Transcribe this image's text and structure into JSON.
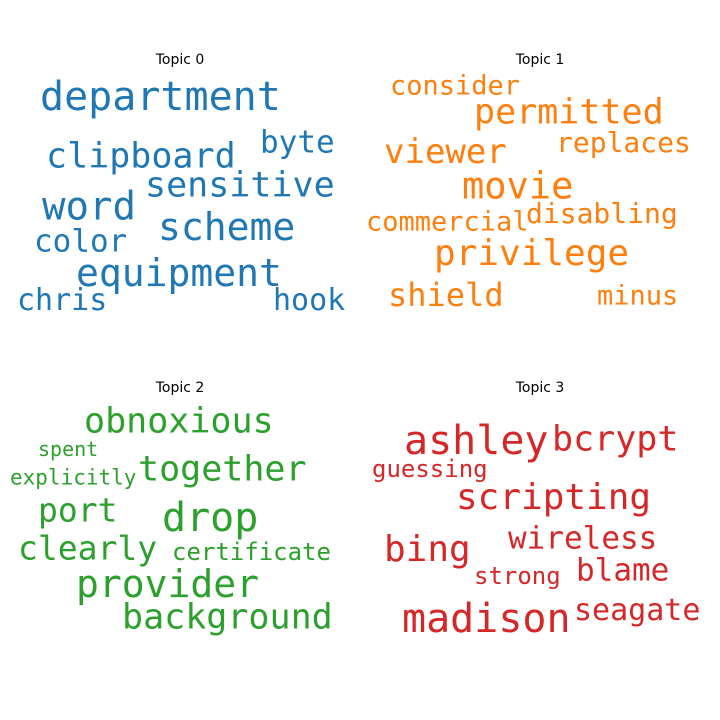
{
  "chart_data": {
    "type": "wordcloud",
    "panels": [
      {
        "title": "Topic 0",
        "color": "#1f77b4",
        "words": [
          {
            "text": "department",
            "size": 40
          },
          {
            "text": "clipboard",
            "size": 35
          },
          {
            "text": "byte",
            "size": 31
          },
          {
            "text": "sensitive",
            "size": 35
          },
          {
            "text": "word",
            "size": 39
          },
          {
            "text": "scheme",
            "size": 38
          },
          {
            "text": "color",
            "size": 31
          },
          {
            "text": "equipment",
            "size": 38
          },
          {
            "text": "chris",
            "size": 30
          },
          {
            "text": "hook",
            "size": 30
          }
        ]
      },
      {
        "title": "Topic 1",
        "color": "#ff7f0e",
        "words": [
          {
            "text": "consider",
            "size": 27
          },
          {
            "text": "permitted",
            "size": 35
          },
          {
            "text": "viewer",
            "size": 34
          },
          {
            "text": "replaces",
            "size": 28
          },
          {
            "text": "movie",
            "size": 37
          },
          {
            "text": "commercial",
            "size": 27
          },
          {
            "text": "disabling",
            "size": 28
          },
          {
            "text": "privilege",
            "size": 36
          },
          {
            "text": "shield",
            "size": 32
          },
          {
            "text": "minus",
            "size": 27
          }
        ]
      },
      {
        "title": "Topic 2",
        "color": "#2ca02c",
        "words": [
          {
            "text": "obnoxious",
            "size": 35
          },
          {
            "text": "spent",
            "size": 20
          },
          {
            "text": "explicitly",
            "size": 21
          },
          {
            "text": "together",
            "size": 35
          },
          {
            "text": "port",
            "size": 33
          },
          {
            "text": "drop",
            "size": 40
          },
          {
            "text": "clearly",
            "size": 33
          },
          {
            "text": "certificate",
            "size": 24
          },
          {
            "text": "provider",
            "size": 38
          },
          {
            "text": "background",
            "size": 35
          }
        ]
      },
      {
        "title": "Topic 3",
        "color": "#d62728",
        "words": [
          {
            "text": "ashley",
            "size": 40
          },
          {
            "text": "bcrypt",
            "size": 35
          },
          {
            "text": "guessing",
            "size": 24
          },
          {
            "text": "scripting",
            "size": 36
          },
          {
            "text": "bing",
            "size": 36
          },
          {
            "text": "wireless",
            "size": 31
          },
          {
            "text": "strong",
            "size": 24
          },
          {
            "text": "blame",
            "size": 31
          },
          {
            "text": "madison",
            "size": 40
          },
          {
            "text": "seagate",
            "size": 30
          }
        ]
      }
    ]
  }
}
